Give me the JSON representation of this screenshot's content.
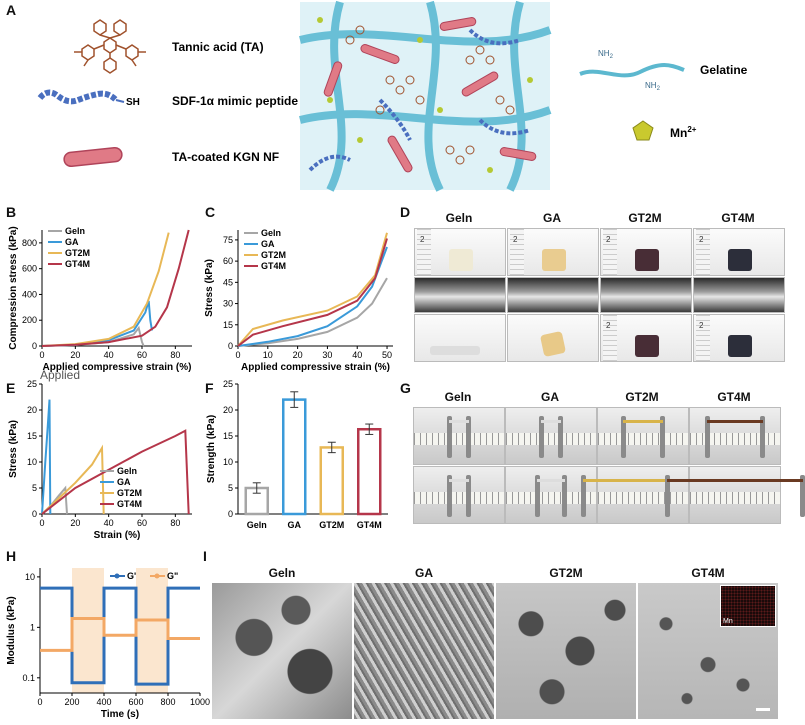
{
  "panels": {
    "A": "A",
    "B": "B",
    "C": "C",
    "D": "D",
    "E": "E",
    "F": "F",
    "G": "G",
    "H": "H",
    "I": "I"
  },
  "legendA": {
    "ta": "Tannic acid (TA)",
    "sdf": "SDF-1α mimic peptide",
    "sh": "SH",
    "nf": "TA-coated KGN NF",
    "gelatine": "Gelatine",
    "nh2a": "NH",
    "nh2b": "NH",
    "sub2": "2",
    "mn": "Mn",
    "mnsup": "2+"
  },
  "groups": [
    "Geln",
    "GA",
    "GT2M",
    "GT4M"
  ],
  "colors": {
    "Geln": "#a6a6a6",
    "GA": "#3a9ad9",
    "GT2M": "#e8b856",
    "GT4M": "#b5364a",
    "Gp": "#2f6fb8",
    "Gpp": "#f3a865",
    "band": "#fbe6cf"
  },
  "scaleTick": "2",
  "extraLabel": "Applied",
  "semInset": "Mn",
  "chart_data": [
    {
      "id": "B",
      "type": "line",
      "xlabel": "Applied compressive strain (%)",
      "ylabel": "Compression stress (kPa)",
      "xticks": [
        0,
        20,
        40,
        60,
        80
      ],
      "yticks": [
        0,
        200,
        400,
        600,
        800
      ],
      "xlim": [
        0,
        90
      ],
      "ylim": [
        0,
        900
      ],
      "series": [
        {
          "name": "Geln",
          "points": [
            [
              0,
              0
            ],
            [
              20,
              8
            ],
            [
              40,
              30
            ],
            [
              55,
              90
            ],
            [
              58,
              140
            ],
            [
              60,
              30
            ],
            [
              61,
              0
            ]
          ]
        },
        {
          "name": "GA",
          "points": [
            [
              0,
              0
            ],
            [
              20,
              10
            ],
            [
              40,
              45
            ],
            [
              55,
              120
            ],
            [
              62,
              260
            ],
            [
              64,
              350
            ],
            [
              65,
              200
            ],
            [
              66,
              120
            ]
          ]
        },
        {
          "name": "GT2M",
          "points": [
            [
              0,
              0
            ],
            [
              20,
              15
            ],
            [
              40,
              55
            ],
            [
              55,
              150
            ],
            [
              63,
              330
            ],
            [
              70,
              580
            ],
            [
              76,
              880
            ]
          ]
        },
        {
          "name": "GT4M",
          "points": [
            [
              0,
              0
            ],
            [
              20,
              10
            ],
            [
              40,
              30
            ],
            [
              60,
              80
            ],
            [
              68,
              150
            ],
            [
              75,
              300
            ],
            [
              82,
              600
            ],
            [
              88,
              900
            ]
          ]
        }
      ]
    },
    {
      "id": "C",
      "type": "line",
      "xlabel": "Applied compressive strain (%)",
      "ylabel": "Stress (kPa)",
      "xticks": [
        0,
        10,
        20,
        30,
        40,
        50
      ],
      "yticks": [
        0,
        15,
        30,
        45,
        60,
        75
      ],
      "xlim": [
        0,
        52
      ],
      "ylim": [
        0,
        82
      ],
      "series": [
        {
          "name": "Geln",
          "points": [
            [
              0,
              0
            ],
            [
              10,
              2
            ],
            [
              20,
              5
            ],
            [
              30,
              10
            ],
            [
              40,
              20
            ],
            [
              45,
              30
            ],
            [
              50,
              48
            ]
          ]
        },
        {
          "name": "GA",
          "points": [
            [
              0,
              0
            ],
            [
              10,
              3
            ],
            [
              20,
              7
            ],
            [
              30,
              14
            ],
            [
              40,
              28
            ],
            [
              45,
              42
            ],
            [
              50,
              70
            ]
          ]
        },
        {
          "name": "GT2M",
          "points": [
            [
              0,
              0
            ],
            [
              5,
              12
            ],
            [
              15,
              18
            ],
            [
              30,
              25
            ],
            [
              40,
              35
            ],
            [
              46,
              50
            ],
            [
              50,
              80
            ]
          ]
        },
        {
          "name": "GT4M",
          "points": [
            [
              0,
              0
            ],
            [
              5,
              8
            ],
            [
              15,
              14
            ],
            [
              30,
              22
            ],
            [
              40,
              32
            ],
            [
              46,
              48
            ],
            [
              50,
              76
            ]
          ]
        }
      ]
    },
    {
      "id": "E",
      "type": "line",
      "xlabel": "Strain (%)",
      "ylabel": "Stress (kPa)",
      "xticks": [
        0,
        20,
        40,
        60,
        80
      ],
      "yticks": [
        0,
        5,
        10,
        15,
        20,
        25
      ],
      "xlim": [
        0,
        90
      ],
      "ylim": [
        0,
        25
      ],
      "series": [
        {
          "name": "Geln",
          "points": [
            [
              0,
              0
            ],
            [
              5,
              1.5
            ],
            [
              10,
              3.5
            ],
            [
              14,
              5
            ],
            [
              15,
              0
            ]
          ]
        },
        {
          "name": "GA",
          "points": [
            [
              0,
              0
            ],
            [
              2,
              10
            ],
            [
              3.5,
              17
            ],
            [
              4.5,
              22
            ],
            [
              5,
              0
            ]
          ]
        },
        {
          "name": "GT2M",
          "points": [
            [
              0,
              0
            ],
            [
              10,
              3
            ],
            [
              20,
              6
            ],
            [
              30,
              9.5
            ],
            [
              36,
              12.7
            ],
            [
              37,
              0
            ]
          ]
        },
        {
          "name": "GT4M",
          "points": [
            [
              0,
              0
            ],
            [
              20,
              5
            ],
            [
              40,
              8.5
            ],
            [
              60,
              12
            ],
            [
              80,
              15
            ],
            [
              86,
              16
            ],
            [
              88,
              0
            ]
          ]
        }
      ]
    },
    {
      "id": "F",
      "type": "bar",
      "ylabel": "Strength (kPa)",
      "categories": [
        "Geln",
        "GA",
        "GT2M",
        "GT4M"
      ],
      "values": [
        5,
        22,
        12.8,
        16.3
      ],
      "errors": [
        1,
        1.5,
        1,
        1
      ],
      "yticks": [
        0,
        5,
        10,
        15,
        20,
        25
      ],
      "ylim": [
        0,
        25
      ]
    },
    {
      "id": "H",
      "type": "line",
      "xlabel": "Time (s)",
      "ylabel": "Modulus (kPa)",
      "xticks": [
        0,
        200,
        400,
        600,
        800,
        1000
      ],
      "ytickLabels": [
        "0.1",
        "1",
        "10"
      ],
      "yscale": "log",
      "xlim": [
        0,
        1000
      ],
      "ylim": [
        0.05,
        15
      ],
      "series": [
        {
          "name": "G'",
          "points": [
            [
              0,
              6
            ],
            [
              200,
              6
            ],
            [
              200,
              0.08
            ],
            [
              400,
              0.08
            ],
            [
              400,
              6
            ],
            [
              600,
              6
            ],
            [
              600,
              0.075
            ],
            [
              800,
              0.075
            ],
            [
              800,
              6
            ],
            [
              1000,
              6
            ]
          ]
        },
        {
          "name": "G\"",
          "points": [
            [
              0,
              0.35
            ],
            [
              200,
              0.35
            ],
            [
              200,
              1.5
            ],
            [
              400,
              1.5
            ],
            [
              400,
              0.7
            ],
            [
              600,
              0.7
            ],
            [
              600,
              1.4
            ],
            [
              800,
              1.4
            ],
            [
              800,
              0.6
            ],
            [
              1000,
              0.6
            ]
          ]
        }
      ]
    }
  ]
}
